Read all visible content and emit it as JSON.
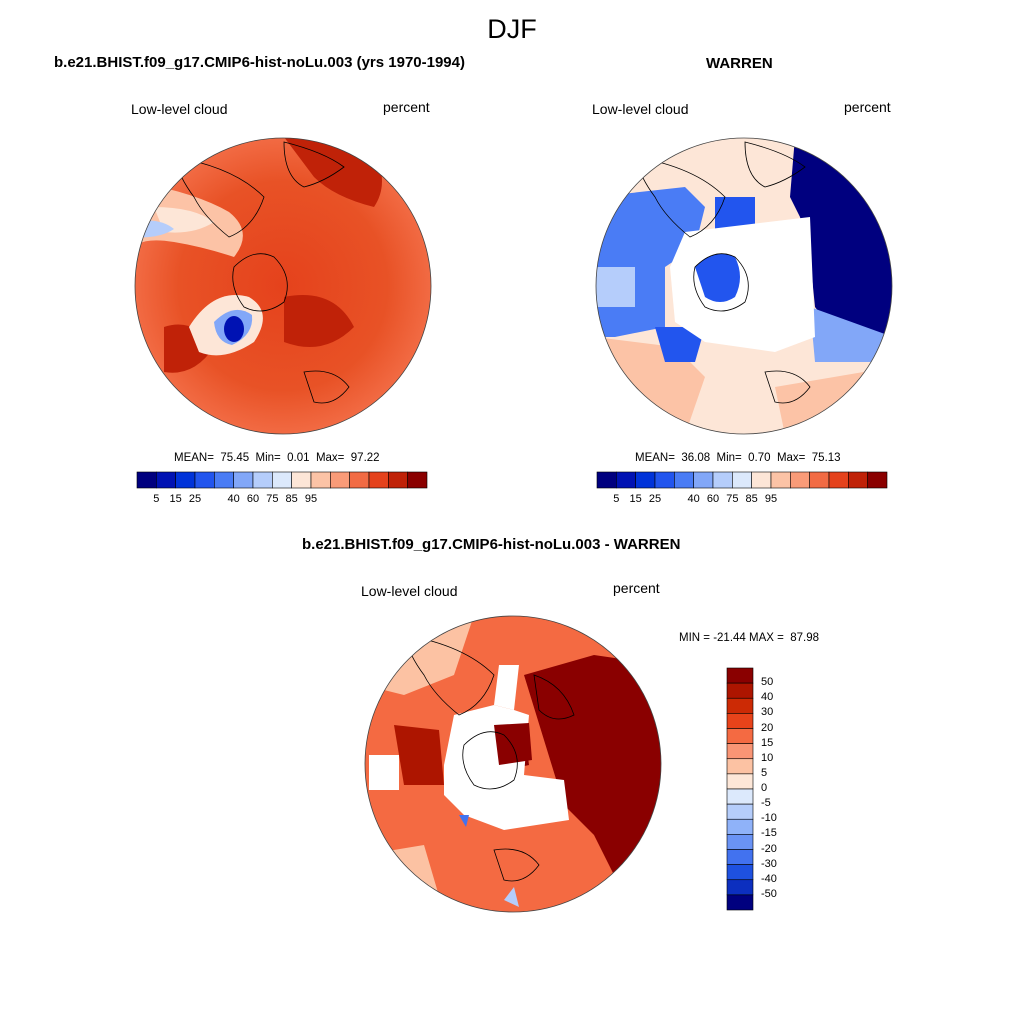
{
  "figure": {
    "season": "DJF"
  },
  "panels": [
    {
      "title": "b.e21.BHIST.f09_g17.CMIP6-hist-noLu.003 (yrs 1970-1994)",
      "variable": "Low-level cloud",
      "units": "percent",
      "stats": {
        "mean_label": "MEAN=",
        "mean": "75.45",
        "min_label": "Min=",
        "min": "0.01",
        "max_label": "Max=",
        "max": "97.22"
      },
      "colorbar": {
        "orientation": "horizontal",
        "colors": [
          "#00007f",
          "#0012b3",
          "#0033d9",
          "#2255ee",
          "#4a7cf5",
          "#82a7f8",
          "#b5cdfb",
          "#dce9fc",
          "#fde6d7",
          "#fcc3a6",
          "#f99b78",
          "#f26b44",
          "#e5421c",
          "#c02208",
          "#8a0000"
        ],
        "tick_labels": [
          "5",
          "15",
          "25",
          "40",
          "60",
          "75",
          "85",
          "95"
        ]
      }
    },
    {
      "title": "WARREN",
      "variable": "Low-level cloud",
      "units": "percent",
      "stats": {
        "mean_label": "MEAN=",
        "mean": "36.08",
        "min_label": "Min=",
        "min": "0.70",
        "max_label": "Max=",
        "max": "75.13"
      },
      "colorbar": {
        "orientation": "horizontal",
        "colors": [
          "#00007f",
          "#0012b3",
          "#0033d9",
          "#2255ee",
          "#4a7cf5",
          "#82a7f8",
          "#b5cdfb",
          "#dce9fc",
          "#fde6d7",
          "#fcc3a6",
          "#f99b78",
          "#f26b44",
          "#e5421c",
          "#c02208",
          "#8a0000"
        ],
        "tick_labels": [
          "5",
          "15",
          "25",
          "40",
          "60",
          "75",
          "85",
          "95"
        ]
      }
    },
    {
      "title": "b.e21.BHIST.f09_g17.CMIP6-hist-noLu.003 - WARREN",
      "variable": "Low-level cloud",
      "units": "percent",
      "minmax": {
        "min_label": "MIN =",
        "min": "-21.44",
        "max_label": "MAX =",
        "max": "87.98"
      },
      "colorbar": {
        "orientation": "vertical",
        "colors": [
          "#8a0000",
          "#ad1500",
          "#cc2a05",
          "#e8431a",
          "#f46a42",
          "#f99575",
          "#fcc2a3",
          "#fde7d8",
          "#dce9fc",
          "#b5cdfb",
          "#8fb2f9",
          "#6a93f5",
          "#4272ef",
          "#1e51e0",
          "#0c2fbf",
          "#00007f"
        ],
        "tick_labels": [
          "50",
          "40",
          "30",
          "20",
          "15",
          "10",
          "5",
          "0",
          "-5",
          "-10",
          "-15",
          "-20",
          "-30",
          "-40",
          "-50"
        ]
      }
    }
  ]
}
